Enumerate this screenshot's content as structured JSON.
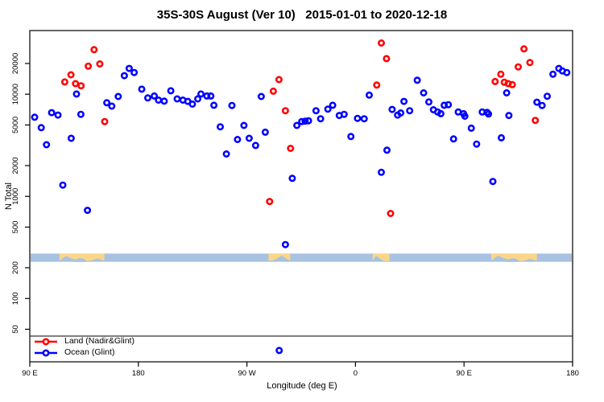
{
  "title": "35S-30S August (Ver 10)   2015-01-01 to 2020-12-18",
  "chart_data": {
    "type": "scatter",
    "title": "35S-30S August (Ver 10)   2015-01-01 to 2020-12-18",
    "xlabel": "Longitude (deg E)",
    "ylabel": "N Total",
    "x_axis": {
      "note": "degrees eastward measured from left edge (left edge = 90E, wrapping 90E-180-90W-0-90E-180)",
      "min": 0,
      "max": 450,
      "ticks": [
        {
          "v": 0,
          "label": "90 E"
        },
        {
          "v": 90,
          "label": "180"
        },
        {
          "v": 180,
          "label": "90 W"
        },
        {
          "v": 270,
          "label": "0"
        },
        {
          "v": 360,
          "label": "90 E"
        },
        {
          "v": 450,
          "label": "180"
        }
      ]
    },
    "y_axis": {
      "scale": "log",
      "min": 24,
      "max": 42000,
      "ticks": [
        {
          "v": 50,
          "label": "50"
        },
        {
          "v": 100,
          "label": "100"
        },
        {
          "v": 200,
          "label": "200"
        },
        {
          "v": 500,
          "label": "500"
        },
        {
          "v": 1000,
          "label": "1000"
        },
        {
          "v": 2000,
          "label": "2000"
        },
        {
          "v": 5000,
          "label": "5000"
        },
        {
          "v": 10000,
          "label": "10000"
        },
        {
          "v": 20000,
          "label": "20000"
        }
      ]
    },
    "grid": false,
    "legend": {
      "position": "bottom-left",
      "separator_line_value": 42.6,
      "entries": [
        {
          "label": "Land (Nadir&Glint)",
          "color": "#ff0000"
        },
        {
          "label": "Ocean (Glint)",
          "color": "#0000ff"
        }
      ]
    },
    "map_strip": {
      "description": "coastline strip for the 35S-30S latitude band drawn across the plot",
      "ocean_color": "#a9c2e2",
      "land_color": "#fbd688",
      "value_range": [
        228,
        276
      ],
      "land_patches": [
        {
          "name": "Australia",
          "from": 24.6,
          "to": 61.8
        },
        {
          "name": "South America",
          "from": 197.9,
          "to": 215.9
        },
        {
          "name": "Southern Africa",
          "from": 284.3,
          "to": 298.2
        },
        {
          "name": "Australia",
          "from": 382.6,
          "to": 420.4
        }
      ]
    },
    "series": [
      {
        "name": "Land (Nadir&Glint)",
        "color": "#ff0000",
        "marker": "open-circle",
        "points": [
          [
            29.0,
            13200
          ],
          [
            34.1,
            15500
          ],
          [
            37.9,
            12700
          ],
          [
            42.5,
            12100
          ],
          [
            48.5,
            18800
          ],
          [
            53.3,
            27300
          ],
          [
            58.0,
            19800
          ],
          [
            62.1,
            5400
          ],
          [
            198.8,
            890
          ],
          [
            201.9,
            10700
          ],
          [
            206.6,
            13900
          ],
          [
            211.9,
            6900
          ],
          [
            216.2,
            2950
          ],
          [
            287.6,
            12300
          ],
          [
            291.4,
            31700
          ],
          [
            295.7,
            22300
          ],
          [
            299.1,
            680
          ],
          [
            385.8,
            13300
          ],
          [
            390.5,
            15700
          ],
          [
            393.4,
            13100
          ],
          [
            396.6,
            12700
          ],
          [
            400.0,
            12400
          ],
          [
            404.9,
            18500
          ],
          [
            409.7,
            27800
          ],
          [
            414.6,
            20400
          ],
          [
            419.1,
            5550
          ]
        ]
      },
      {
        "name": "Ocean (Glint)",
        "color": "#0000ff",
        "marker": "open-circle",
        "points": [
          [
            4.0,
            5950
          ],
          [
            9.5,
            4700
          ],
          [
            13.8,
            3200
          ],
          [
            18.1,
            6600
          ],
          [
            23.4,
            6250
          ],
          [
            27.4,
            1290
          ],
          [
            34.3,
            3700
          ],
          [
            38.7,
            10050
          ],
          [
            42.3,
            6350
          ],
          [
            47.8,
            730
          ],
          [
            63.8,
            8250
          ],
          [
            68.0,
            7650
          ],
          [
            73.3,
            9500
          ],
          [
            78.4,
            15200
          ],
          [
            82.4,
            17900
          ],
          [
            86.5,
            16300
          ],
          [
            92.8,
            11200
          ],
          [
            97.8,
            9200
          ],
          [
            103.2,
            9600
          ],
          [
            106.7,
            8750
          ],
          [
            111.4,
            8550
          ],
          [
            116.9,
            10800
          ],
          [
            122.2,
            9000
          ],
          [
            126.9,
            8750
          ],
          [
            131.0,
            8500
          ],
          [
            134.8,
            8000
          ],
          [
            139.3,
            9000
          ],
          [
            141.9,
            10050
          ],
          [
            146.8,
            9600
          ],
          [
            150.1,
            9600
          ],
          [
            152.6,
            7800
          ],
          [
            157.9,
            4800
          ],
          [
            163.0,
            2600
          ],
          [
            167.6,
            7750
          ],
          [
            172.2,
            3600
          ],
          [
            177.5,
            4950
          ],
          [
            181.9,
            3700
          ],
          [
            187.2,
            3150
          ],
          [
            191.9,
            9500
          ],
          [
            195.2,
            4250
          ],
          [
            206.8,
            31
          ],
          [
            211.9,
            337
          ],
          [
            217.6,
            1500
          ],
          [
            221.4,
            4950
          ],
          [
            225.5,
            5400
          ],
          [
            228.3,
            5450
          ],
          [
            231.1,
            5500
          ],
          [
            237.3,
            6900
          ],
          [
            241.1,
            5750
          ],
          [
            247.1,
            7150
          ],
          [
            251.1,
            7800
          ],
          [
            256.6,
            6200
          ],
          [
            260.6,
            6350
          ],
          [
            266.2,
            3850
          ],
          [
            271.7,
            5800
          ],
          [
            277.2,
            5750
          ],
          [
            281.4,
            9800
          ],
          [
            291.4,
            1720
          ],
          [
            296.1,
            2830
          ],
          [
            300.4,
            7100
          ],
          [
            304.9,
            6250
          ],
          [
            307.5,
            6550
          ],
          [
            310.2,
            8500
          ],
          [
            314.9,
            6900
          ],
          [
            321.2,
            13700
          ],
          [
            326.5,
            10300
          ],
          [
            330.8,
            8400
          ],
          [
            334.6,
            7050
          ],
          [
            338.1,
            6700
          ],
          [
            340.8,
            6450
          ],
          [
            343.6,
            7800
          ],
          [
            347.0,
            7900
          ],
          [
            351.3,
            3650
          ],
          [
            355.2,
            6700
          ],
          [
            359.6,
            6450
          ],
          [
            360.7,
            6100
          ],
          [
            366.0,
            4650
          ],
          [
            370.4,
            3250
          ],
          [
            375.1,
            6700
          ],
          [
            379.0,
            6650
          ],
          [
            380.3,
            6400
          ],
          [
            383.9,
            1400
          ],
          [
            390.9,
            3740
          ],
          [
            395.3,
            10300
          ],
          [
            397.2,
            6200
          ],
          [
            420.4,
            8350
          ],
          [
            424.7,
            7750
          ],
          [
            429.0,
            9550
          ],
          [
            433.7,
            15700
          ],
          [
            438.6,
            17900
          ],
          [
            441.5,
            16900
          ],
          [
            445.2,
            16300
          ]
        ]
      }
    ]
  }
}
